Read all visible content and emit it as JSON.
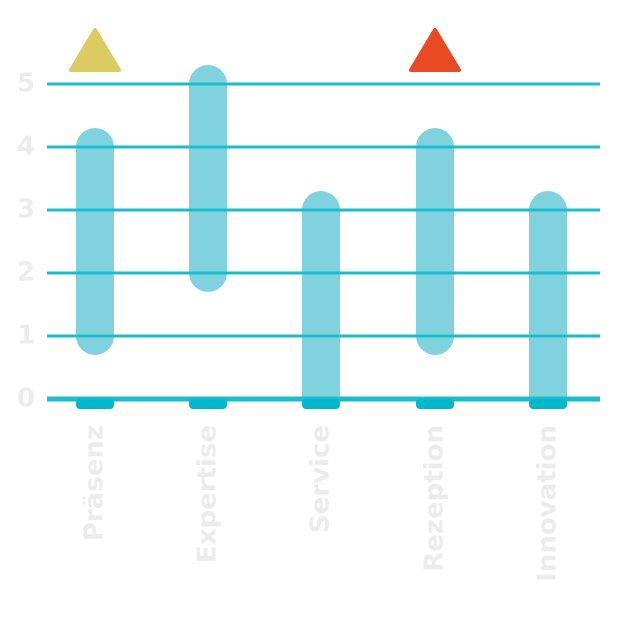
{
  "chart_data": {
    "type": "range-bar",
    "categories": [
      "Präsenz",
      "Expertise",
      "Service",
      "Rezeption",
      "Innovation"
    ],
    "low": [
      1,
      2,
      0,
      1,
      0
    ],
    "high": [
      4,
      5,
      3,
      4,
      3
    ],
    "color": "#80d3de",
    "grid_color": "#1cbccc",
    "marker_colors": [
      "#dccb63",
      null,
      null,
      "#e84a23",
      null
    ],
    "ylim": [
      0,
      5
    ],
    "yticks": [
      0,
      1,
      2,
      3,
      4,
      5
    ],
    "grid": true
  }
}
